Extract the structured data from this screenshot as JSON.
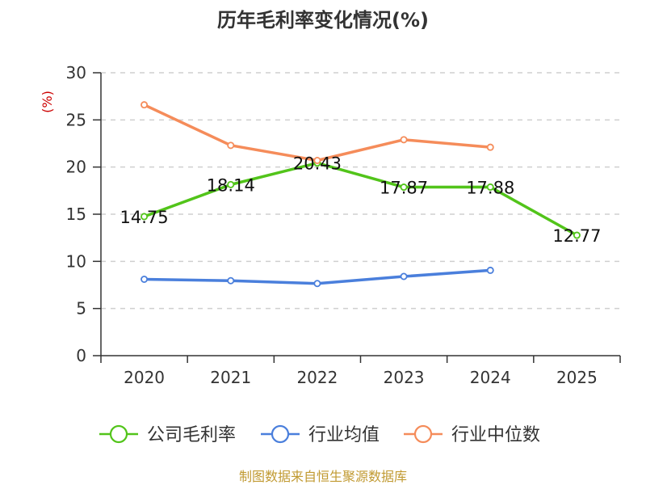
{
  "chart_data": {
    "type": "line",
    "title": "历年毛利率变化情况(%)",
    "ylabel": "(%)",
    "categories": [
      "2020",
      "2021",
      "2022",
      "2023",
      "2024",
      "2025"
    ],
    "ylim": [
      0,
      30
    ],
    "yticks": [
      0,
      5,
      10,
      15,
      20,
      25,
      30
    ],
    "grid": true,
    "legend_position": "bottom",
    "series": [
      {
        "name": "公司毛利率",
        "color": "#52c41a",
        "values": [
          14.75,
          18.14,
          20.43,
          17.87,
          17.88,
          12.77
        ],
        "labels": [
          "14.75",
          "18.14",
          "20.43",
          "17.87",
          "17.88",
          "12.77"
        ]
      },
      {
        "name": "行业均值",
        "color": "#4a7fdc",
        "values": [
          8.1,
          7.95,
          7.65,
          8.4,
          9.05,
          null
        ]
      },
      {
        "name": "行业中位数",
        "color": "#f58c5a",
        "values": [
          26.6,
          22.3,
          20.7,
          22.9,
          22.1,
          null
        ]
      }
    ],
    "source": "制图数据来自恒生聚源数据库"
  }
}
